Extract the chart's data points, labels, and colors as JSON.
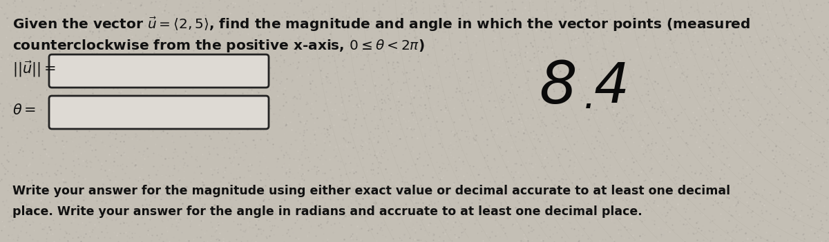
{
  "bg_color": "#c4bfb5",
  "text_color": "#111111",
  "title_line1": "Given the vector $\\vec{u} = \\langle 2, 5 \\rangle$, find the magnitude and angle in which the vector points (measured",
  "title_line2": "counterclockwise from the positive x-axis, $0 \\leq \\theta < 2\\pi$)",
  "label_mag": "$||\\vec{u}|| =$",
  "label_theta": "$\\theta =$",
  "footer_line1": "Write your answer for the magnitude using either exact value or decimal accurate to at least one decimal",
  "footer_line2": "place. Write your answer for the angle in radians and accruate to at least one decimal place.",
  "fig_width": 12.0,
  "fig_height": 3.51
}
